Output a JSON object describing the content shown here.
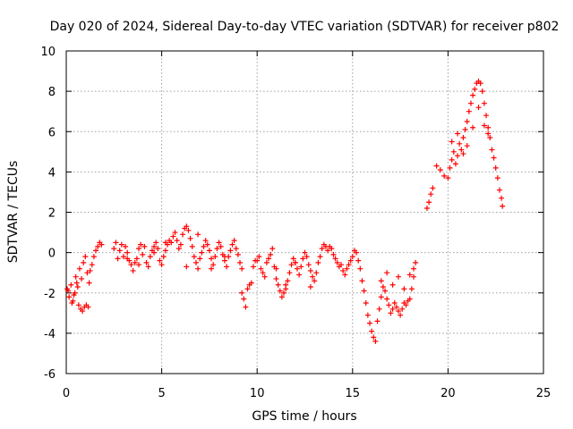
{
  "chart_data": {
    "type": "scatter",
    "title": "Day 020 of 2024, Sidereal Day-to-day VTEC variation (SDTVAR) for receiver p802",
    "xlabel": "GPS time / hours",
    "ylabel": "SDTVAR / TECUs",
    "xlim": [
      0,
      25
    ],
    "ylim": [
      -6,
      10
    ],
    "xticks": [
      0,
      5,
      10,
      15,
      20,
      25
    ],
    "yticks": [
      -6,
      -4,
      -2,
      0,
      2,
      4,
      6,
      8,
      10
    ],
    "xtick_labels": [
      "0",
      "5",
      "10",
      "15",
      "20",
      "25"
    ],
    "ytick_labels": [
      "-6",
      "-4",
      "-2",
      "0",
      "2",
      "4",
      "6",
      "8",
      "10"
    ],
    "grid": true,
    "marker": "+",
    "series_color": "#ff0000",
    "series": [
      {
        "name": "SDTVAR",
        "x": [
          0.05,
          0.15,
          0.25,
          0.35,
          0.45,
          0.55,
          0.65,
          0.75,
          0.85,
          0.95,
          1.05,
          1.15,
          1.25,
          1.35,
          1.45,
          1.55,
          1.65,
          1.75,
          1.85,
          0.1,
          0.3,
          0.5,
          0.7,
          0.9,
          1.0,
          1.1,
          1.2,
          0.4,
          0.6,
          0.8,
          2.5,
          2.6,
          2.7,
          2.8,
          2.9,
          3.0,
          3.1,
          3.2,
          3.3,
          3.4,
          3.5,
          3.6,
          3.7,
          3.8,
          3.9,
          4.0,
          4.1,
          4.2,
          4.3,
          4.4,
          4.5,
          4.6,
          4.7,
          4.8,
          4.9,
          5.0,
          5.1,
          5.2,
          5.3,
          5.4,
          5.5,
          5.6,
          5.7,
          5.8,
          5.9,
          6.0,
          6.1,
          6.2,
          6.3,
          6.4,
          6.5,
          6.6,
          6.7,
          6.8,
          6.9,
          7.0,
          7.1,
          7.2,
          7.3,
          7.4,
          7.5,
          7.6,
          7.7,
          7.8,
          7.9,
          8.0,
          8.1,
          8.2,
          8.3,
          8.4,
          8.5,
          8.6,
          8.7,
          8.8,
          8.9,
          9.0,
          9.1,
          9.2,
          9.3,
          9.4,
          9.5,
          9.6,
          9.7,
          9.8,
          9.9,
          3.2,
          3.8,
          4.6,
          5.2,
          6.3,
          6.9,
          7.6,
          8.3,
          9.2,
          10.0,
          10.1,
          10.2,
          10.3,
          10.4,
          10.5,
          10.6,
          10.7,
          10.8,
          10.9,
          11.0,
          11.1,
          11.2,
          11.3,
          11.4,
          11.5,
          11.6,
          11.7,
          11.8,
          11.9,
          12.0,
          12.1,
          12.2,
          12.3,
          12.4,
          12.5,
          12.6,
          12.7,
          12.8,
          12.9,
          13.0,
          13.1,
          13.2,
          13.3,
          13.4,
          13.5,
          13.6,
          13.7,
          13.8,
          13.9,
          14.0,
          14.1,
          14.2,
          14.3,
          14.4,
          14.5,
          14.6,
          14.7,
          14.8,
          14.9,
          15.0,
          15.1,
          15.2,
          15.3,
          15.4,
          15.5,
          15.6,
          15.7,
          15.8,
          15.9,
          16.0,
          16.1,
          16.2,
          11.0,
          11.5,
          12.0,
          12.8,
          16.3,
          16.4,
          16.5,
          16.6,
          16.7,
          16.8,
          16.9,
          17.0,
          17.1,
          17.2,
          17.3,
          17.4,
          17.5,
          17.6,
          17.7,
          17.8,
          17.9,
          18.0,
          18.1,
          18.2,
          18.3,
          16.5,
          16.8,
          17.1,
          17.4,
          17.7,
          18.0,
          18.2,
          18.9,
          19.0,
          19.1,
          19.2,
          19.4,
          19.6,
          19.8,
          20.0,
          20.1,
          20.2,
          20.3,
          20.4,
          20.5,
          20.6,
          20.7,
          20.8,
          20.9,
          21.0,
          21.1,
          21.2,
          21.3,
          21.4,
          21.5,
          21.6,
          21.7,
          21.8,
          21.9,
          22.0,
          22.1,
          22.2,
          22.3,
          22.4,
          22.5,
          22.6,
          22.7,
          22.8,
          22.85,
          20.2,
          20.5,
          20.8,
          21.0,
          21.3,
          21.6,
          21.9,
          22.1
        ],
        "y": [
          -1.8,
          -2.2,
          -1.6,
          -2.4,
          -2.0,
          -1.5,
          -2.6,
          -2.8,
          -2.9,
          -2.7,
          -2.6,
          -2.7,
          -0.9,
          -0.6,
          -0.2,
          0.1,
          0.3,
          0.5,
          0.4,
          -1.9,
          -2.5,
          -1.2,
          -0.8,
          -0.5,
          -0.2,
          -1.0,
          -1.5,
          -2.1,
          -1.7,
          -1.3,
          0.2,
          0.5,
          -0.3,
          0.1,
          0.4,
          -0.2,
          0.3,
          0.0,
          -0.4,
          -0.6,
          -0.9,
          -0.5,
          -0.3,
          0.2,
          0.4,
          -0.1,
          0.3,
          -0.5,
          -0.7,
          -0.2,
          0.1,
          0.3,
          0.5,
          0.2,
          -0.4,
          -0.6,
          -0.2,
          0.1,
          0.4,
          0.6,
          0.5,
          0.8,
          1.0,
          0.6,
          0.2,
          0.4,
          0.9,
          1.2,
          1.3,
          1.1,
          0.7,
          0.3,
          -0.2,
          -0.5,
          -0.8,
          -0.3,
          0.0,
          0.3,
          0.6,
          0.4,
          0.1,
          -0.3,
          -0.6,
          -0.2,
          0.2,
          0.5,
          0.3,
          -0.1,
          -0.4,
          -0.7,
          -0.2,
          0.1,
          0.4,
          0.6,
          0.2,
          -0.1,
          -0.5,
          -0.8,
          -2.3,
          -2.7,
          -1.8,
          -1.6,
          -1.5,
          -0.7,
          -0.4,
          -0.3,
          -0.6,
          0.0,
          0.5,
          -0.7,
          0.9,
          -0.8,
          -0.2,
          -2.0,
          -0.4,
          -0.2,
          -0.8,
          -1.0,
          -1.2,
          -0.5,
          -0.3,
          -0.1,
          0.2,
          -0.7,
          -1.3,
          -1.6,
          -1.9,
          -2.2,
          -2.0,
          -1.8,
          -1.4,
          -1.0,
          -0.6,
          -0.3,
          -0.5,
          -0.8,
          -1.1,
          -0.7,
          -0.3,
          0.0,
          -0.2,
          -0.6,
          -0.9,
          -1.2,
          -1.4,
          -1.0,
          -0.5,
          -0.2,
          0.2,
          0.4,
          0.3,
          0.1,
          0.3,
          0.2,
          -0.1,
          -0.3,
          -0.5,
          -0.7,
          -0.6,
          -0.9,
          -1.1,
          -0.8,
          -0.6,
          -0.4,
          -0.2,
          0.1,
          0.0,
          -0.4,
          -0.8,
          -1.4,
          -1.9,
          -2.5,
          -3.1,
          -3.5,
          -3.9,
          -4.2,
          -4.4,
          -0.8,
          -1.6,
          -0.5,
          -1.7,
          -3.4,
          -2.8,
          -2.2,
          -1.7,
          -1.9,
          -2.3,
          -2.6,
          -3.0,
          -2.8,
          -2.5,
          -2.7,
          -2.9,
          -3.1,
          -2.8,
          -2.5,
          -2.6,
          -2.4,
          -2.3,
          -1.8,
          -1.2,
          -0.5,
          -1.4,
          -1.0,
          -1.6,
          -1.2,
          -1.8,
          -1.1,
          -0.8,
          2.2,
          2.5,
          2.9,
          3.2,
          4.3,
          4.1,
          3.8,
          3.7,
          4.2,
          4.6,
          5.0,
          4.4,
          4.8,
          5.4,
          5.1,
          5.7,
          6.1,
          6.5,
          7.0,
          7.4,
          7.8,
          8.1,
          8.4,
          8.5,
          8.4,
          8.0,
          7.4,
          6.8,
          6.2,
          5.7,
          5.1,
          4.7,
          4.2,
          3.7,
          3.1,
          2.7,
          2.3,
          5.5,
          5.9,
          4.9,
          5.3,
          6.2,
          7.2,
          6.3,
          5.9
        ]
      }
    ]
  }
}
